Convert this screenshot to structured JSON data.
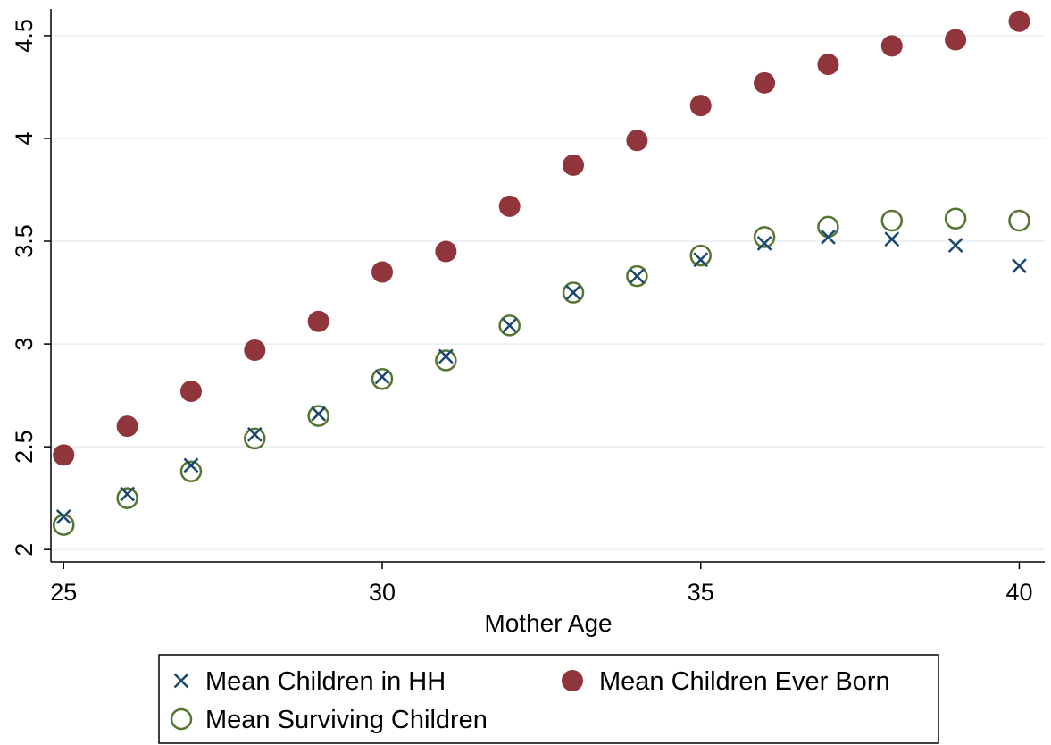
{
  "chart_data": {
    "type": "scatter",
    "title": "",
    "xlabel": "Mother Age",
    "ylabel": "",
    "xlim": [
      24.8,
      40.4
    ],
    "ylim": [
      1.94,
      4.63
    ],
    "x_ticks": [
      25,
      30,
      35,
      40
    ],
    "y_ticks": [
      2,
      2.5,
      3,
      3.5,
      4,
      4.5
    ],
    "x_tick_labels": [
      "25",
      "30",
      "35",
      "40"
    ],
    "y_tick_labels": [
      "2",
      "2.5",
      "3",
      "3.5",
      "4",
      "4.5"
    ],
    "grid": "horizontal",
    "legend_position": "bottom",
    "x": [
      25,
      26,
      27,
      28,
      29,
      30,
      31,
      32,
      33,
      34,
      35,
      36,
      37,
      38,
      39,
      40
    ],
    "series": [
      {
        "name": "Mean Children in HH",
        "marker": "x",
        "color": "#1a476f",
        "values": [
          2.16,
          2.27,
          2.41,
          2.56,
          2.66,
          2.84,
          2.94,
          3.09,
          3.25,
          3.33,
          3.41,
          3.49,
          3.52,
          3.51,
          3.48,
          3.38
        ]
      },
      {
        "name": "Mean Children Ever Born",
        "marker": "filled-circle",
        "color": "#90353b",
        "values": [
          2.46,
          2.6,
          2.77,
          2.97,
          3.11,
          3.35,
          3.45,
          3.67,
          3.87,
          3.99,
          4.16,
          4.27,
          4.36,
          4.45,
          4.48,
          4.57
        ]
      },
      {
        "name": "Mean Surviving Children",
        "marker": "hollow-circle",
        "color": "#55752f",
        "values": [
          2.12,
          2.25,
          2.38,
          2.54,
          2.65,
          2.83,
          2.92,
          3.09,
          3.25,
          3.33,
          3.43,
          3.52,
          3.57,
          3.6,
          3.61,
          3.6
        ]
      }
    ],
    "colors": {
      "background": "#ffffff",
      "gridline": "#eaf2f3",
      "axis": "#000000"
    }
  }
}
